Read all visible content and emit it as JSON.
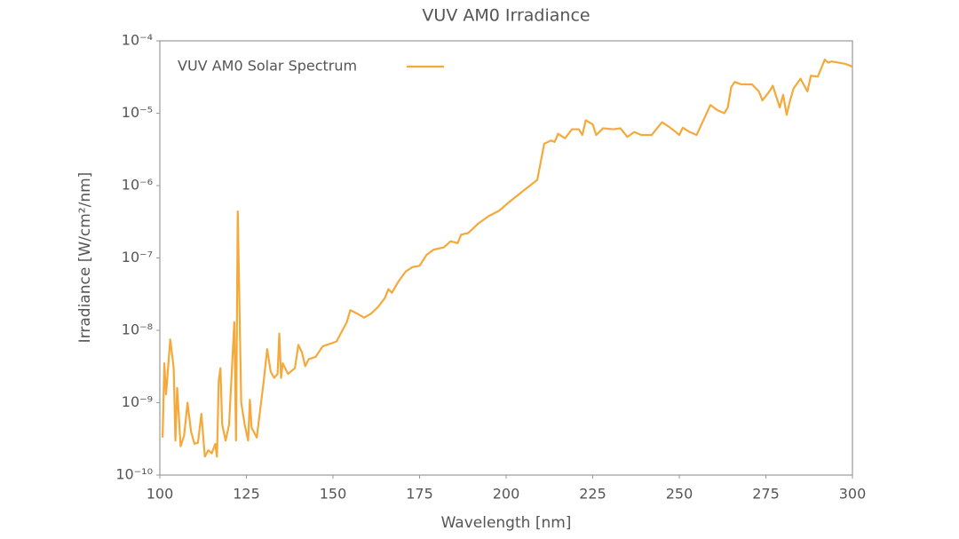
{
  "chart_data": {
    "type": "line",
    "title": "VUV AM0 Irradiance",
    "xlabel": "Wavelength [nm]",
    "ylabel": "Irradiance [W/cm²/nm]",
    "x": [
      100.8,
      101.3,
      101.8,
      103,
      104,
      104.5,
      105,
      106,
      107,
      108,
      109,
      110,
      111,
      112,
      113,
      114,
      115,
      116,
      116.5,
      117,
      117.5,
      118,
      119,
      120,
      121.5,
      122,
      122.5,
      123.5,
      124.5,
      125.5,
      126,
      126.5,
      128,
      130,
      131,
      132,
      133,
      134,
      134.5,
      135,
      135.5,
      137,
      139,
      140,
      141,
      142,
      143,
      145,
      147,
      151,
      154,
      155,
      157,
      159,
      161,
      163,
      165,
      166,
      167,
      169,
      171,
      173,
      175,
      177,
      179,
      182,
      184,
      186,
      187,
      189,
      192,
      195,
      198,
      201,
      205,
      209,
      211,
      213,
      214,
      215,
      217,
      219,
      221,
      222,
      223,
      225,
      226,
      228,
      231,
      233,
      235,
      237,
      239,
      242,
      245,
      247,
      249,
      250,
      251,
      253,
      255,
      259,
      261,
      263,
      264,
      265,
      266,
      268,
      271,
      273,
      274,
      276,
      277,
      279,
      280,
      281,
      282,
      283,
      285,
      287,
      288,
      290,
      292,
      293,
      294,
      296,
      298,
      300
    ],
    "series": [
      {
        "name": "VUV AM0 Solar Spectrum",
        "color": "#f5a93a",
        "values": [
          3.3e-10,
          3.5e-09,
          1.3e-09,
          7.5e-09,
          3e-09,
          3e-10,
          1.6e-09,
          2.5e-10,
          3.5e-10,
          1e-09,
          4e-10,
          2.7e-10,
          2.8e-10,
          7e-10,
          1.8e-10,
          2.2e-10,
          2e-10,
          2.7e-10,
          1.8e-10,
          2e-09,
          3e-09,
          5e-10,
          3e-10,
          5e-10,
          1.3e-08,
          3e-10,
          4.4e-07,
          1e-09,
          5e-10,
          3e-10,
          1.1e-09,
          4.5e-10,
          3.3e-10,
          2e-09,
          5.5e-09,
          2.7e-09,
          2.2e-09,
          2.5e-09,
          9e-09,
          2.2e-09,
          3.5e-09,
          2.5e-09,
          3e-09,
          6.3e-09,
          5e-09,
          3.2e-09,
          4e-09,
          4.3e-09,
          6e-09,
          7e-09,
          1.3e-08,
          1.9e-08,
          1.7e-08,
          1.5e-08,
          1.7e-08,
          2.1e-08,
          2.8e-08,
          3.7e-08,
          3.3e-08,
          4.8e-08,
          6.5e-08,
          7.5e-08,
          7.8e-08,
          1.1e-07,
          1.3e-07,
          1.4e-07,
          1.7e-07,
          1.6e-07,
          2.1e-07,
          2.2e-07,
          3e-07,
          3.8e-07,
          4.5e-07,
          6e-07,
          8.5e-07,
          1.2e-06,
          3.8e-06,
          4.2e-06,
          4e-06,
          5.2e-06,
          4.5e-06,
          6e-06,
          6e-06,
          5e-06,
          8e-06,
          7e-06,
          5e-06,
          6.2e-06,
          6e-06,
          6.2e-06,
          4.7e-06,
          5.5e-06,
          5e-06,
          5e-06,
          7.5e-06,
          6.5e-06,
          5.5e-06,
          5e-06,
          6.3e-06,
          5.5e-06,
          5e-06,
          1.3e-05,
          1.1e-05,
          1e-05,
          1.2e-05,
          2.3e-05,
          2.7e-05,
          2.5e-05,
          2.5e-05,
          2e-05,
          1.5e-05,
          2e-05,
          2.4e-05,
          1.2e-05,
          1.8e-05,
          9.5e-06,
          1.5e-05,
          2.2e-05,
          3e-05,
          2e-05,
          3.3e-05,
          3.2e-05,
          5.5e-05,
          5e-05,
          5.2e-05,
          5e-05,
          4.8e-05,
          4.4e-05
        ]
      }
    ],
    "xlim": [
      100,
      300
    ],
    "xticks": [
      100,
      125,
      150,
      175,
      200,
      225,
      250,
      275,
      300
    ],
    "ylim": [
      1e-10,
      0.0001
    ],
    "yticks": [
      {
        "value": 1e-10,
        "label": "10⁻¹⁰"
      },
      {
        "value": 1e-09,
        "label": "10⁻⁹"
      },
      {
        "value": 1e-08,
        "label": "10⁻⁸"
      },
      {
        "value": 1e-07,
        "label": "10⁻⁷"
      },
      {
        "value": 1e-06,
        "label": "10⁻⁶"
      },
      {
        "value": 1e-05,
        "label": "10⁻⁵"
      },
      {
        "value": 0.0001,
        "label": "10⁻⁴"
      }
    ],
    "ylog": true,
    "grid": false,
    "legend": "upper left"
  }
}
